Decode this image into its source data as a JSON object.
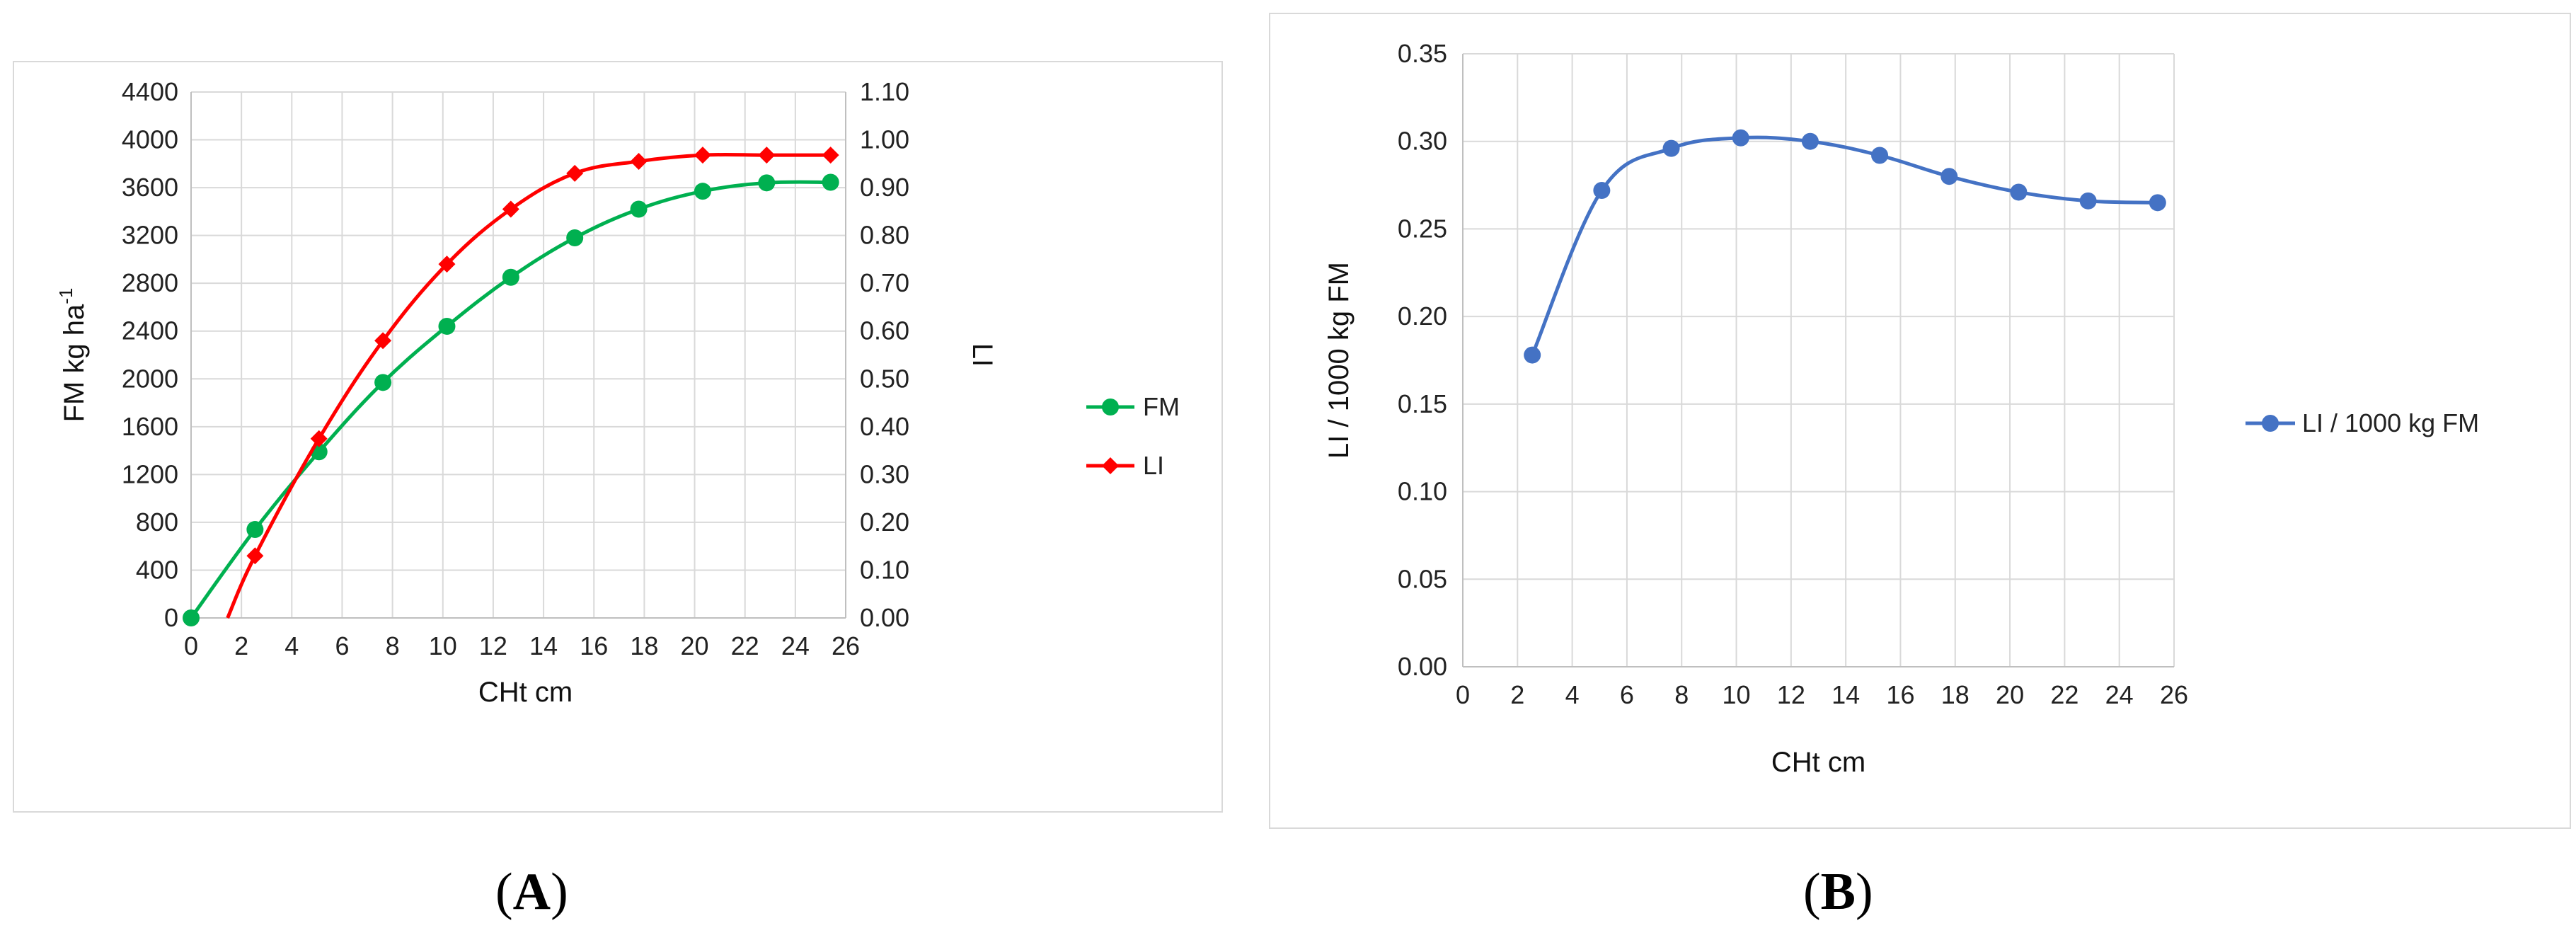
{
  "panel_labels": [
    {
      "open": "(",
      "letter": "A",
      "close": ")"
    },
    {
      "open": "(",
      "letter": "B",
      "close": ")"
    }
  ],
  "chart_data": [
    {
      "type": "line",
      "panel": "A",
      "title": "",
      "xlabel": "CHt cm",
      "ylabel_main": "FM kg ha",
      "ylabel_sup": "-1",
      "y2label": "LI",
      "xlim": [
        0,
        26
      ],
      "ylim": [
        0,
        4400
      ],
      "y2lim": [
        0,
        1.1
      ],
      "x_ticks": [
        0,
        2,
        4,
        6,
        8,
        10,
        12,
        14,
        16,
        18,
        20,
        22,
        24,
        26
      ],
      "y_ticks": [
        "0",
        "400",
        "800",
        "1200",
        "1600",
        "2000",
        "2400",
        "2800",
        "3200",
        "3600",
        "4000",
        "4400"
      ],
      "y2_ticks": [
        "0.00",
        "0.10",
        "0.20",
        "0.30",
        "0.40",
        "0.50",
        "0.60",
        "0.70",
        "0.80",
        "0.90",
        "1.00",
        "1.10"
      ],
      "grid": true,
      "legend": "right",
      "series": [
        {
          "name": "FM",
          "axis": "left",
          "color": "#00b050",
          "marker": "circle",
          "x": [
            0,
            2.54,
            5.08,
            7.62,
            10.16,
            12.7,
            15.24,
            17.78,
            20.32,
            22.86,
            25.4
          ],
          "y": [
            0,
            740,
            1390,
            1970,
            2440,
            2850,
            3180,
            3420,
            3570,
            3640,
            3645
          ]
        },
        {
          "name": "LI",
          "axis": "right",
          "color": "#ff0000",
          "marker": "diamond",
          "curve_start": [
            1.45,
            0
          ],
          "x": [
            2.54,
            5.08,
            7.62,
            10.16,
            12.7,
            15.24,
            17.78,
            20.32,
            22.86,
            25.4
          ],
          "y": [
            0.13,
            0.375,
            0.58,
            0.74,
            0.855,
            0.93,
            0.955,
            0.968,
            0.968,
            0.968
          ]
        }
      ]
    },
    {
      "type": "line",
      "panel": "B",
      "title": "",
      "xlabel": "CHt cm",
      "ylabel": "LI / 1000 kg FM",
      "xlim": [
        0,
        26
      ],
      "ylim": [
        0,
        0.35
      ],
      "x_ticks": [
        0,
        2,
        4,
        6,
        8,
        10,
        12,
        14,
        16,
        18,
        20,
        22,
        24,
        26
      ],
      "y_ticks": [
        "0.00",
        "0.05",
        "0.10",
        "0.15",
        "0.20",
        "0.25",
        "0.30",
        "0.35"
      ],
      "grid": true,
      "legend": "right",
      "series": [
        {
          "name": "LI / 1000 kg FM",
          "color": "#4472c4",
          "marker": "circle",
          "x": [
            2.54,
            5.08,
            7.62,
            10.16,
            12.7,
            15.24,
            17.78,
            20.32,
            22.86,
            25.4
          ],
          "y": [
            0.178,
            0.272,
            0.296,
            0.302,
            0.3,
            0.292,
            0.28,
            0.271,
            0.266,
            0.265
          ]
        }
      ]
    }
  ]
}
